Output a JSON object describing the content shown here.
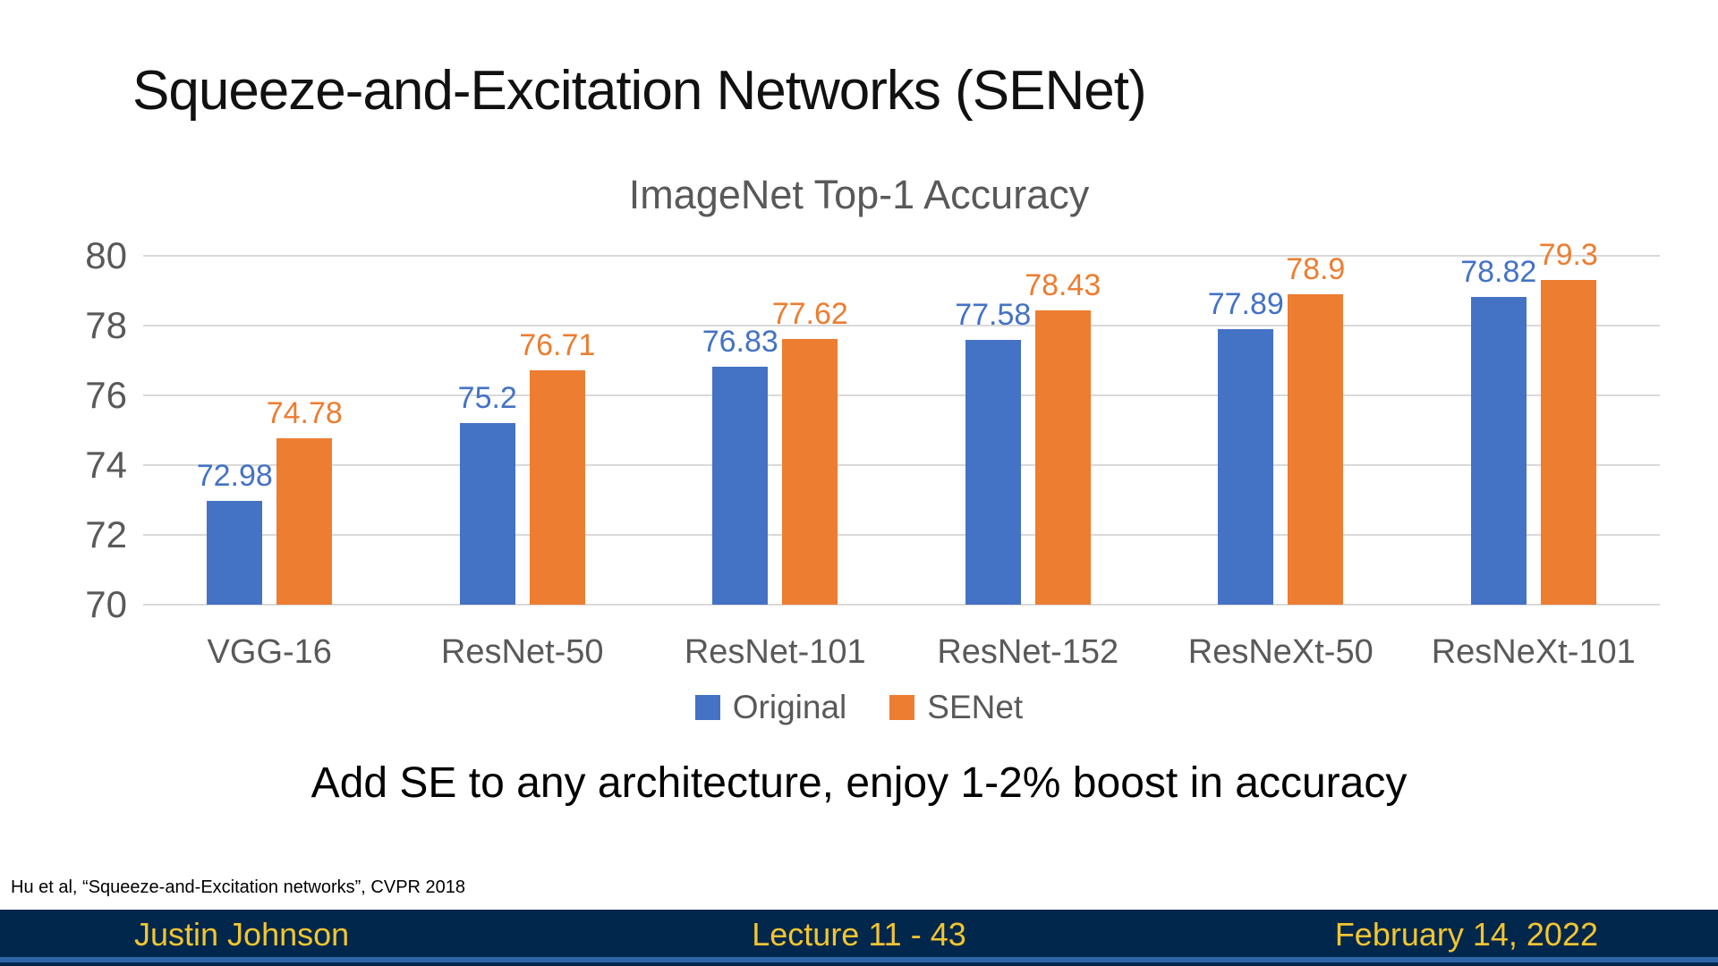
{
  "slide": {
    "title": "Squeeze-and-Excitation Networks (SENet)",
    "takeaway": "Add SE to any architecture, enjoy 1-2% boost in accuracy",
    "citation": "Hu et al, “Squeeze-and-Excitation networks”, CVPR 2018"
  },
  "footer": {
    "author": "Justin Johnson",
    "lecture": "Lecture 11 - 43",
    "date": "February 14, 2022",
    "bg_color": "#02274C",
    "text_color": "#F2C531",
    "accent_strip_color": "#2F65A7"
  },
  "chart_data": {
    "type": "bar",
    "title": "ImageNet Top-1 Accuracy",
    "categories": [
      "VGG-16",
      "ResNet-50",
      "ResNet-101",
      "ResNet-152",
      "ResNeXt-50",
      "ResNeXt-101"
    ],
    "series": [
      {
        "name": "Original",
        "color": "#4472C4",
        "values": [
          72.98,
          75.2,
          76.83,
          77.58,
          77.89,
          78.82
        ]
      },
      {
        "name": "SENet",
        "color": "#ED7D31",
        "values": [
          74.78,
          76.71,
          77.62,
          78.43,
          78.9,
          79.3
        ]
      }
    ],
    "ylim": [
      70,
      80
    ],
    "yticks": [
      70,
      72,
      74,
      76,
      78,
      80
    ],
    "grid": true,
    "gridline_color": "#D9D9D9",
    "axis_text_color": "#595959",
    "legend_position": "bottom",
    "data_labels": true
  }
}
